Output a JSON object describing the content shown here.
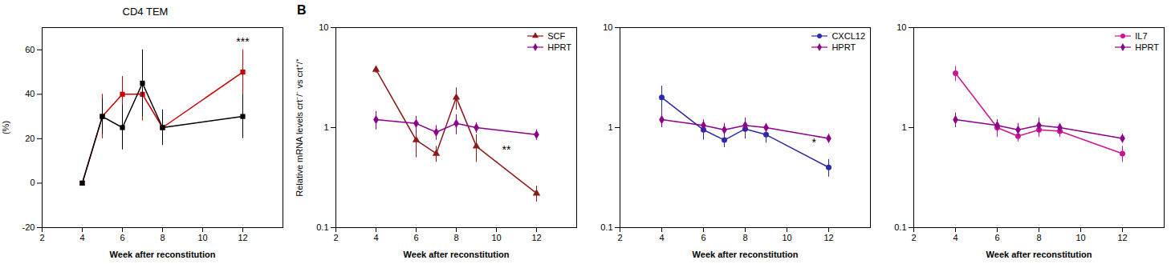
{
  "chart_data": [
    {
      "type": "line",
      "title": "CD4 TEM",
      "xlabel": "Week after reconstitution",
      "ylabel": "(%)",
      "x": [
        4,
        5,
        6,
        7,
        8,
        12
      ],
      "series": [
        {
          "color": "#CC0000",
          "marker": "square",
          "values": [
            0,
            30,
            40,
            40,
            25,
            50
          ],
          "errors": [
            0.01,
            10,
            8,
            12,
            7,
            10
          ]
        },
        {
          "color": "black",
          "marker": "square",
          "values": [
            0,
            30,
            25,
            45,
            25,
            30
          ],
          "errors": [
            0.01,
            8,
            10,
            15,
            8,
            10
          ]
        }
      ],
      "xlim": [
        2,
        14
      ],
      "xticks": [
        2,
        4,
        6,
        8,
        10,
        12
      ],
      "ylim": [
        -20,
        70
      ],
      "yticks": [
        -20,
        0,
        20,
        40,
        60
      ],
      "grid": false,
      "annotations": [
        {
          "text": "***",
          "x": 12,
          "y": 62
        }
      ]
    },
    {
      "type": "line",
      "panel_label": "B",
      "xlabel": "Week after reconstitution",
      "ylabel": "Relative mRNA levels crt⁻/⁻ vs crt⁺/⁺",
      "x": [
        4,
        6,
        7,
        8,
        9,
        12
      ],
      "series": [
        {
          "name": "SCF",
          "color": "#8B1A1A",
          "marker": "triangle",
          "values": [
            3.8,
            0.75,
            0.55,
            2.0,
            0.65,
            0.22
          ],
          "errors": [
            0.3,
            0.25,
            0.1,
            0.5,
            0.2,
            0.04
          ]
        },
        {
          "name": "HPRT",
          "color": "#8B008B",
          "marker": "diamond",
          "values": [
            1.2,
            1.1,
            0.9,
            1.1,
            1.0,
            0.85
          ],
          "errors": [
            0.25,
            0.2,
            0.15,
            0.25,
            0.12,
            0.1
          ]
        }
      ],
      "xlim": [
        2,
        14
      ],
      "xticks": [
        2,
        4,
        6,
        8,
        10,
        12
      ],
      "ylim": [
        0.1,
        10
      ],
      "yticks": [
        0.1,
        1,
        10
      ],
      "log": "y",
      "grid": false,
      "legend": "upper right",
      "annotations": [
        {
          "text": "**",
          "x": 10.5,
          "y": 0.55
        }
      ]
    },
    {
      "type": "line",
      "xlabel": "Week after reconstitution",
      "x": [
        4,
        6,
        7,
        8,
        9,
        12
      ],
      "series": [
        {
          "name": "CXCL12",
          "color": "#2B2BAA",
          "marker": "circle",
          "values": [
            2.0,
            0.95,
            0.75,
            0.97,
            0.85,
            0.4
          ],
          "errors": [
            0.6,
            0.2,
            0.12,
            0.2,
            0.15,
            0.08
          ]
        },
        {
          "name": "HPRT",
          "color": "#8B008B",
          "marker": "diamond",
          "values": [
            1.2,
            1.05,
            0.95,
            1.05,
            1.0,
            0.78
          ],
          "errors": [
            0.2,
            0.15,
            0.15,
            0.2,
            0.1,
            0.08
          ]
        }
      ],
      "xlim": [
        2,
        14
      ],
      "xticks": [
        2,
        4,
        6,
        8,
        10,
        12
      ],
      "ylim": [
        0.1,
        10
      ],
      "yticks": [
        0.1,
        1,
        10
      ],
      "log": "y",
      "grid": false,
      "legend": "upper right",
      "annotations": [
        {
          "text": "*",
          "x": 11.3,
          "y": 0.65
        }
      ]
    },
    {
      "type": "line",
      "xlabel": "Week after reconstitution",
      "x": [
        4,
        6,
        7,
        8,
        9,
        12
      ],
      "series": [
        {
          "name": "IL7",
          "color": "#CC1493",
          "marker": "circle",
          "values": [
            3.5,
            1.0,
            0.82,
            0.95,
            0.92,
            0.55
          ],
          "errors": [
            0.6,
            0.2,
            0.1,
            0.15,
            0.12,
            0.1
          ]
        },
        {
          "name": "HPRT",
          "color": "#8B008B",
          "marker": "diamond",
          "values": [
            1.2,
            1.05,
            0.95,
            1.05,
            1.0,
            0.78
          ],
          "errors": [
            0.2,
            0.15,
            0.15,
            0.2,
            0.1,
            0.08
          ]
        }
      ],
      "xlim": [
        2,
        14
      ],
      "xticks": [
        2,
        4,
        6,
        8,
        10,
        12
      ],
      "ylim": [
        0.1,
        10
      ],
      "yticks": [
        0.1,
        1,
        10
      ],
      "log": "y",
      "grid": false,
      "legend": "upper right"
    }
  ]
}
